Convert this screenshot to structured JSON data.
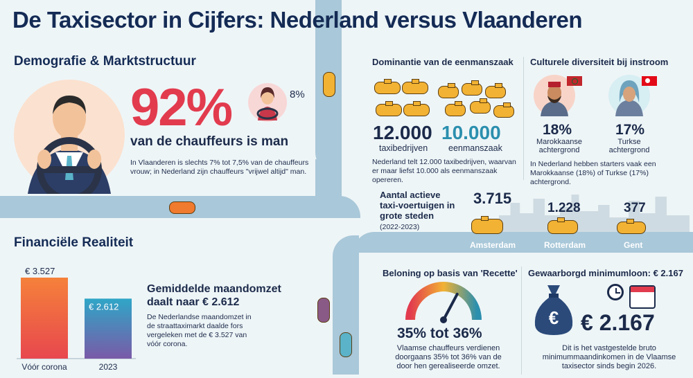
{
  "title": "De Taxisector in Cijfers: Nederland versus Vlaanderen",
  "demografie": {
    "heading": "Demografie & Marktstructuur",
    "big_percent": "92%",
    "subtitle": "van de chauffeurs is man",
    "female_percent": "8%",
    "note": "In Vlaanderen is slechts 7% tot 7,5% van de chauffeurs vrouw; in Nederland zijn chauffeurs \"vrijwel altijd\" man."
  },
  "dominantie": {
    "heading": "Dominantie van de eenmanszaak",
    "stat1_value": "12.000",
    "stat1_label": "taxibedrijven",
    "stat2_value": "10.000",
    "stat2_label": "eenmanszaak",
    "note": "Nederland telt 12.000 taxibedrijven, waarvan er maar liefst 10.000 als eenmanszaak opereren."
  },
  "diversiteit": {
    "heading": "Culturele diversiteit bij instroom",
    "stat1_value": "18%",
    "stat1_label": "Marokkaanse achtergrond",
    "stat2_value": "17%",
    "stat2_label": "Turkse achtergrond",
    "note": "In Nederland hebben starters vaak een Marokkaanse (18%) of Turkse (17%) achtergrond."
  },
  "voertuigen": {
    "heading": "Aantal actieve taxi-voertuigen in grote steden",
    "period": "(2022-2023)",
    "cities": [
      {
        "name": "Amsterdam",
        "value": "3.715"
      },
      {
        "name": "Rotterdam",
        "value": "1.228"
      },
      {
        "name": "Gent",
        "value": "377"
      }
    ]
  },
  "financieel": {
    "heading": "Financiële Realiteit",
    "chart_data": {
      "type": "bar",
      "categories": [
        "Vóór corona",
        "2023"
      ],
      "values": [
        3527,
        2612
      ],
      "value_labels": [
        "€ 3.527",
        "€ 2.612"
      ]
    },
    "headline": "Gemiddelde maandomzet daalt naar € 2.612",
    "note": "De Nederlandse maandomzet in de straattaximarkt daalde fors vergeleken met de € 3.527 van vóór corona."
  },
  "beloning": {
    "heading": "Beloning op basis van 'Recette'",
    "value": "35% tot 36%",
    "gauge_level": 0.355,
    "note": "Vlaamse chauffeurs verdienen doorgaans 35% tot 36% van de door hen gerealiseerde omzet."
  },
  "minimumloon": {
    "heading": "Gewaarborgd minimumloon: € 2.167",
    "value": "€ 2.167",
    "note": "Dit is het vastgestelde bruto minimummaandinkomen in de Vlaamse taxisector sinds begin 2026."
  },
  "colors": {
    "navy": "#142b55",
    "red": "#e23b4e",
    "teal": "#2b8fae",
    "orange": "#f07a2e",
    "yellow": "#f2b233"
  }
}
